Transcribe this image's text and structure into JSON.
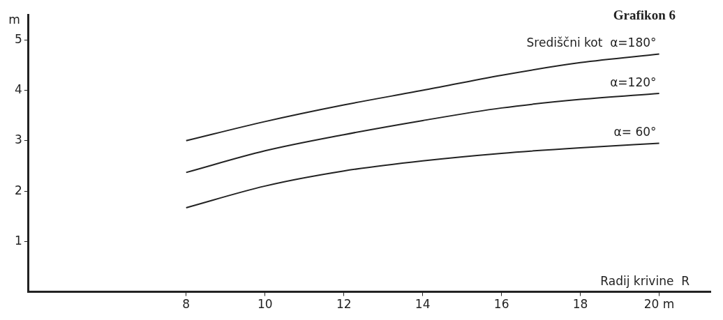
{
  "chart_data": {
    "type": "line",
    "title": "Grafikon 6",
    "xlabel": "Radij krivine  R",
    "ylabel": "m",
    "xlim": [
      4,
      21.3
    ],
    "ylim": [
      0,
      5.5
    ],
    "xticks": [
      8,
      10,
      12,
      14,
      16,
      18,
      {
        "value": 20,
        "label": "20 m"
      }
    ],
    "yticks": [
      1,
      2,
      3,
      4,
      5
    ],
    "x": [
      8,
      10,
      12,
      14,
      16,
      18,
      20
    ],
    "series": [
      {
        "name": "Središčni kot  α=180°",
        "color": "#222222",
        "values": [
          3.0,
          3.38,
          3.71,
          4.0,
          4.3,
          4.55,
          4.72
        ]
      },
      {
        "name": "α=120°",
        "color": "#222222",
        "values": [
          2.37,
          2.8,
          3.12,
          3.4,
          3.65,
          3.82,
          3.94
        ]
      },
      {
        "name": "α= 60°",
        "color": "#222222",
        "values": [
          1.67,
          2.1,
          2.4,
          2.6,
          2.75,
          2.86,
          2.95
        ]
      }
    ],
    "grid": false,
    "legend": false,
    "marker": "none",
    "line_style": "solid"
  }
}
